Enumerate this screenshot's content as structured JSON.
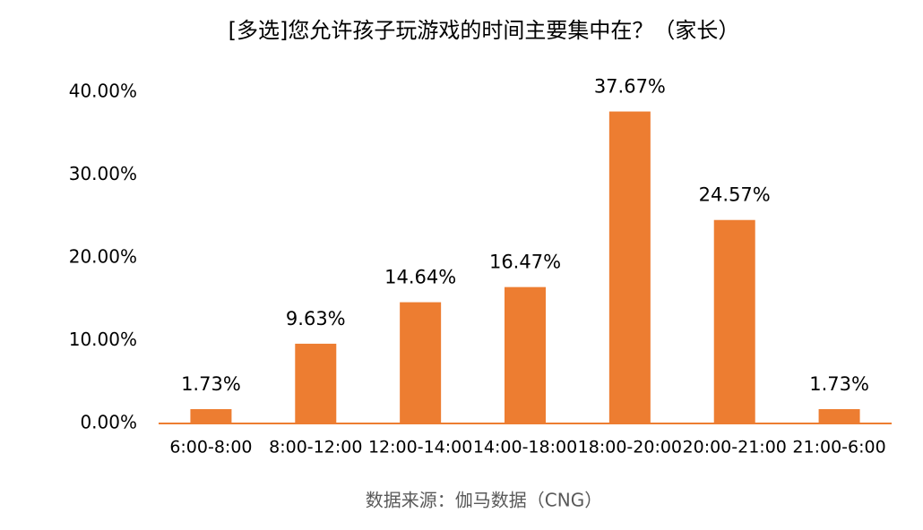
{
  "chart_data": {
    "type": "bar",
    "title": "[多选]您允许孩子玩游戏的时间主要集中在？（家长）",
    "source": "数据来源：伽马数据（CNG）",
    "categories": [
      "6:00-8:00",
      "8:00-12:00",
      "12:00-14:00",
      "14:00-18:00",
      "18:00-20:00",
      "20:00-21:00",
      "21:00-6:00"
    ],
    "values": [
      1.73,
      9.63,
      14.64,
      16.47,
      37.67,
      24.57,
      1.73
    ],
    "value_labels": [
      "1.73%",
      "9.63%",
      "14.64%",
      "16.47%",
      "37.67%",
      "24.57%",
      "1.73%"
    ],
    "color": "#ed7d31",
    "ylim": [
      0,
      40
    ],
    "yticks": [
      {
        "value": 0,
        "label": "0.00%"
      },
      {
        "value": 10,
        "label": "10.00%"
      },
      {
        "value": 20,
        "label": "20.00%"
      },
      {
        "value": 30,
        "label": "30.00%"
      },
      {
        "value": 40,
        "label": "40.00%"
      }
    ],
    "grid": false
  }
}
